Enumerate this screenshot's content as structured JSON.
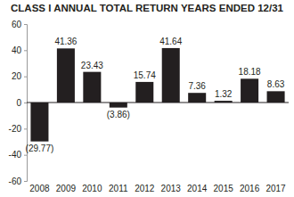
{
  "chart_data": {
    "type": "bar",
    "title": "CLASS I ANNUAL TOTAL RETURN YEARS ENDED 12/31",
    "categories": [
      "2008",
      "2009",
      "2010",
      "2011",
      "2012",
      "2013",
      "2014",
      "2015",
      "2016",
      "2017"
    ],
    "values": [
      -29.77,
      41.36,
      23.43,
      -3.86,
      15.74,
      41.64,
      7.36,
      1.32,
      18.18,
      8.63
    ],
    "value_labels": [
      "(29.77)",
      "41.36",
      "23.43",
      "(3.86)",
      "15.74",
      "41.64",
      "7.36",
      "1.32",
      "18.18",
      "8.63"
    ],
    "color": "#231f20",
    "ylim": [
      -60,
      60
    ],
    "yticks": [
      -60,
      -40,
      -20,
      0,
      20,
      40,
      60
    ],
    "grid": false,
    "data_labels": true
  }
}
